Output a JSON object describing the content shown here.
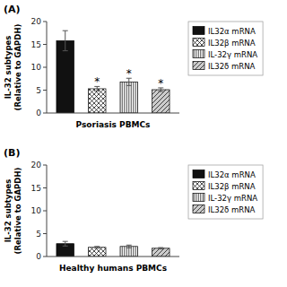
{
  "chart_data": [
    {
      "type": "bar",
      "title": "(A)",
      "x_label": "Psoriasis PBMCs",
      "y_label": "IL-32 subtypes\n(Relative to GAPDH)",
      "categories": [
        null
      ],
      "ylim": [
        0,
        20.0
      ],
      "yticks": [
        0,
        5,
        10,
        15,
        20
      ],
      "grid": false,
      "legend": "right",
      "tick_labels": "y",
      "series": [
        {
          "name": "IL32α mRNA",
          "color": "#111111",
          "values": [
            15.8
          ],
          "errors": [
            2.2
          ]
        },
        {
          "name": "IL32β mRNA",
          "color": "#ffffff",
          "values": [
            5.3
          ],
          "errors": [
            0.5
          ],
          "annotation": "*"
        },
        {
          "name": "IL-32γ mRNA",
          "color": "#ffffff",
          "values": [
            6.8
          ],
          "errors": [
            0.8
          ],
          "annotation": "*"
        },
        {
          "name": "IL32δ mRNA",
          "color": "#cccccc",
          "values": [
            5.1
          ],
          "errors": [
            0.4
          ],
          "annotation": "*"
        }
      ]
    },
    {
      "type": "bar",
      "title": "(B)",
      "x_label": "Healthy humans PBMCs",
      "y_label": "IL-32 subtypes\n(Relative to GAPDH)",
      "categories": [
        null
      ],
      "ylim": [
        0,
        20.0
      ],
      "yticks": [
        0,
        5,
        10,
        15,
        20
      ],
      "grid": false,
      "legend": "right",
      "tick_labels": "y",
      "series": [
        {
          "name": "IL32α mRNA",
          "color": "#111111",
          "values": [
            2.8
          ],
          "errors": [
            0.5
          ]
        },
        {
          "name": "IL32β mRNA",
          "color": "#ffffff",
          "values": [
            2.0
          ],
          "errors": [
            0.2
          ]
        },
        {
          "name": "IL-32γ mRNA",
          "color": "#ffffff",
          "values": [
            2.2
          ],
          "errors": [
            0.3
          ]
        },
        {
          "name": "IL32δ mRNA",
          "color": "#cccccc",
          "values": [
            1.8
          ],
          "errors": [
            0.15
          ]
        }
      ]
    }
  ]
}
